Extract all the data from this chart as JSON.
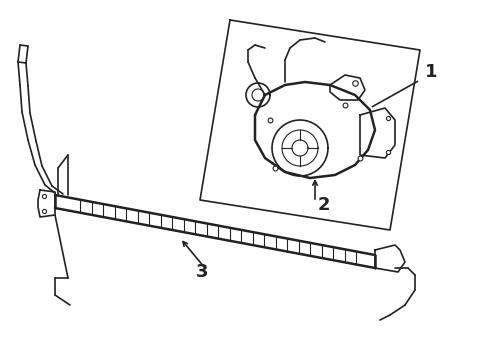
{
  "title": "",
  "background_color": "#ffffff",
  "label_1": "1",
  "label_2": "2",
  "label_3": "3",
  "line_color": "#222222",
  "bg_color": "#ffffff",
  "fig_width": 4.9,
  "fig_height": 3.6,
  "dpi": 100
}
